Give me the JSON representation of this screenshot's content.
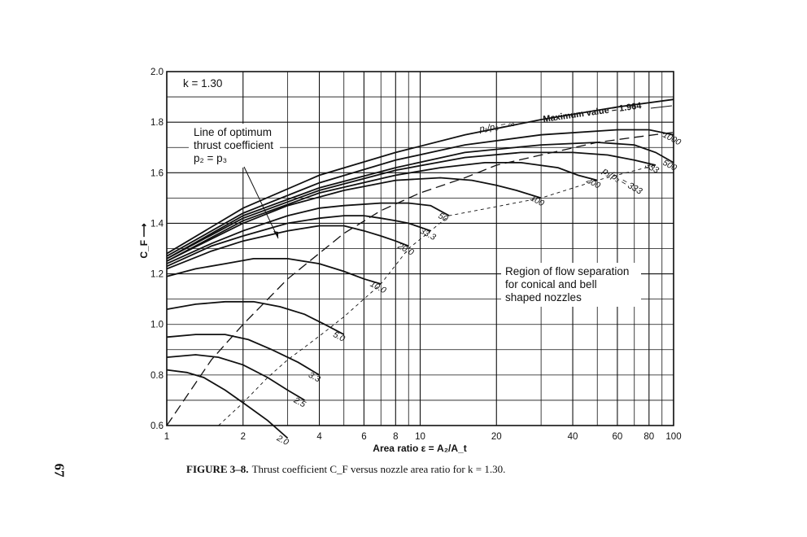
{
  "page_number": "67",
  "caption": {
    "lead": "FIGURE 3–8.",
    "text": "Thrust coefficient C_F versus nozzle area ratio for k = 1.30."
  },
  "chart_data": {
    "type": "line",
    "xscale": "log",
    "xlim": [
      1,
      100
    ],
    "ylim": [
      0.6,
      2.0
    ],
    "xlabel": "Area ratio ε = A₂/A_t",
    "ylabel": "C_F ⟶",
    "x_ticks": [
      1,
      2,
      4,
      6,
      8,
      10,
      20,
      40,
      60,
      80,
      100
    ],
    "x_tick_labels": [
      "1",
      "2",
      "4",
      "6",
      "8",
      "10",
      "20",
      "40",
      "60",
      "80",
      "100"
    ],
    "y_ticks": [
      0.6,
      0.8,
      1.0,
      1.2,
      1.4,
      1.6,
      1.8,
      2.0
    ],
    "y_tick_labels": [
      "0.6",
      "0.8",
      "1.0",
      "1.2",
      "1.4",
      "1.6",
      "1.8",
      "2.0"
    ],
    "grid": true,
    "annotations": {
      "k_label": "k = 1.30",
      "optimum_line": [
        "Line of optimum",
        "thrust coefficient",
        "p₂ = p₃"
      ],
      "max_label": "p₁/p₃ = ∞",
      "max_value": "Maximum value = 1.964",
      "region": [
        "Region of flow separation",
        "for conical and bell",
        "shaped nozzles"
      ],
      "ratio_label": "p₁/p₃ = 333"
    },
    "series": [
      {
        "name": "2.0",
        "x": [
          1,
          1.2,
          1.4,
          1.7,
          2.0,
          2.5,
          3.0
        ],
        "y": [
          0.82,
          0.81,
          0.79,
          0.74,
          0.69,
          0.62,
          0.55
        ]
      },
      {
        "name": "2.5",
        "x": [
          1,
          1.3,
          1.6,
          2.0,
          2.5,
          3.0,
          3.5
        ],
        "y": [
          0.87,
          0.88,
          0.87,
          0.84,
          0.79,
          0.74,
          0.7
        ]
      },
      {
        "name": "3.3",
        "x": [
          1,
          1.3,
          1.7,
          2.1,
          2.6,
          3.3,
          4.0
        ],
        "y": [
          0.95,
          0.96,
          0.96,
          0.94,
          0.9,
          0.85,
          0.8
        ]
      },
      {
        "name": "5.0",
        "x": [
          1,
          1.3,
          1.7,
          2.2,
          2.8,
          3.5,
          4.2,
          5.0
        ],
        "y": [
          1.06,
          1.08,
          1.09,
          1.09,
          1.07,
          1.04,
          1.0,
          0.96
        ]
      },
      {
        "name": "10.0",
        "x": [
          1,
          1.3,
          1.7,
          2.2,
          3.0,
          4.0,
          5.0,
          6.0,
          7.0
        ],
        "y": [
          1.19,
          1.22,
          1.24,
          1.26,
          1.26,
          1.24,
          1.21,
          1.18,
          1.16
        ]
      },
      {
        "name": "20.0",
        "x": [
          1,
          1.5,
          2.0,
          3.0,
          4.0,
          5.0,
          6.0,
          7.0,
          8.0,
          9.0
        ],
        "y": [
          1.22,
          1.29,
          1.33,
          1.37,
          1.39,
          1.39,
          1.37,
          1.35,
          1.33,
          1.31
        ]
      },
      {
        "name": "33.3",
        "x": [
          1,
          1.5,
          2.0,
          3.0,
          4.0,
          5.0,
          6.0,
          7.0,
          8.0,
          9.0,
          11.0
        ],
        "y": [
          1.23,
          1.31,
          1.35,
          1.4,
          1.42,
          1.43,
          1.43,
          1.42,
          1.41,
          1.4,
          1.37
        ]
      },
      {
        "name": "50",
        "x": [
          1,
          1.5,
          2.0,
          3.0,
          4.0,
          5.0,
          7.0,
          9.0,
          11.0,
          13.0
        ],
        "y": [
          1.24,
          1.32,
          1.37,
          1.43,
          1.46,
          1.47,
          1.48,
          1.48,
          1.47,
          1.43
        ]
      },
      {
        "name": "100",
        "x": [
          1,
          2.0,
          3.0,
          5.0,
          8.0,
          12.0,
          16.0,
          20.0,
          24.0,
          30.0
        ],
        "y": [
          1.25,
          1.4,
          1.47,
          1.53,
          1.57,
          1.58,
          1.57,
          1.55,
          1.53,
          1.5
        ]
      },
      {
        "name": "200",
        "x": [
          1,
          2.0,
          4.0,
          8.0,
          12.0,
          18.0,
          25.0,
          35.0,
          42.0,
          50.0
        ],
        "y": [
          1.25,
          1.41,
          1.52,
          1.59,
          1.62,
          1.64,
          1.64,
          1.62,
          1.59,
          1.57
        ]
      },
      {
        "name": "333",
        "x": [
          1,
          2.0,
          4.0,
          8.0,
          15.0,
          25.0,
          40.0,
          55.0,
          70.0,
          85.0
        ],
        "y": [
          1.26,
          1.42,
          1.53,
          1.61,
          1.66,
          1.68,
          1.68,
          1.67,
          1.65,
          1.63
        ]
      },
      {
        "name": "500",
        "x": [
          1,
          2.0,
          4.0,
          8.0,
          15.0,
          30.0,
          50.0,
          70.0,
          85.0,
          100.0
        ],
        "y": [
          1.26,
          1.43,
          1.54,
          1.62,
          1.68,
          1.71,
          1.72,
          1.71,
          1.68,
          1.64
        ]
      },
      {
        "name": "1000",
        "x": [
          1,
          2.0,
          4.0,
          8.0,
          15.0,
          30.0,
          60.0,
          80.0,
          100.0
        ],
        "y": [
          1.27,
          1.44,
          1.56,
          1.65,
          1.71,
          1.75,
          1.77,
          1.77,
          1.75
        ]
      },
      {
        "name": "∞",
        "x": [
          1,
          2.0,
          4.0,
          8.0,
          15.0,
          30.0,
          60.0,
          100.0
        ],
        "y": [
          1.28,
          1.46,
          1.59,
          1.68,
          1.75,
          1.81,
          1.86,
          1.89
        ]
      }
    ],
    "optimum_line": {
      "x": [
        1,
        1.5,
        2.0,
        3.0,
        5.0,
        7.0,
        10.0,
        15.0,
        20.0,
        30.0,
        50.0,
        70.0,
        100.0
      ],
      "y": [
        0.6,
        0.86,
        1.0,
        1.18,
        1.36,
        1.45,
        1.52,
        1.58,
        1.63,
        1.67,
        1.72,
        1.74,
        1.76
      ]
    },
    "separation_line": {
      "x": [
        1.6,
        2.0,
        2.5,
        3.0,
        3.5,
        4.2,
        5.0,
        7.0,
        9.0,
        11.0,
        13.0,
        30.0,
        50.0,
        85.0
      ],
      "y": [
        0.6,
        0.69,
        0.79,
        0.86,
        0.91,
        0.97,
        1.03,
        1.16,
        1.3,
        1.37,
        1.43,
        1.5,
        1.57,
        1.63
      ]
    }
  }
}
